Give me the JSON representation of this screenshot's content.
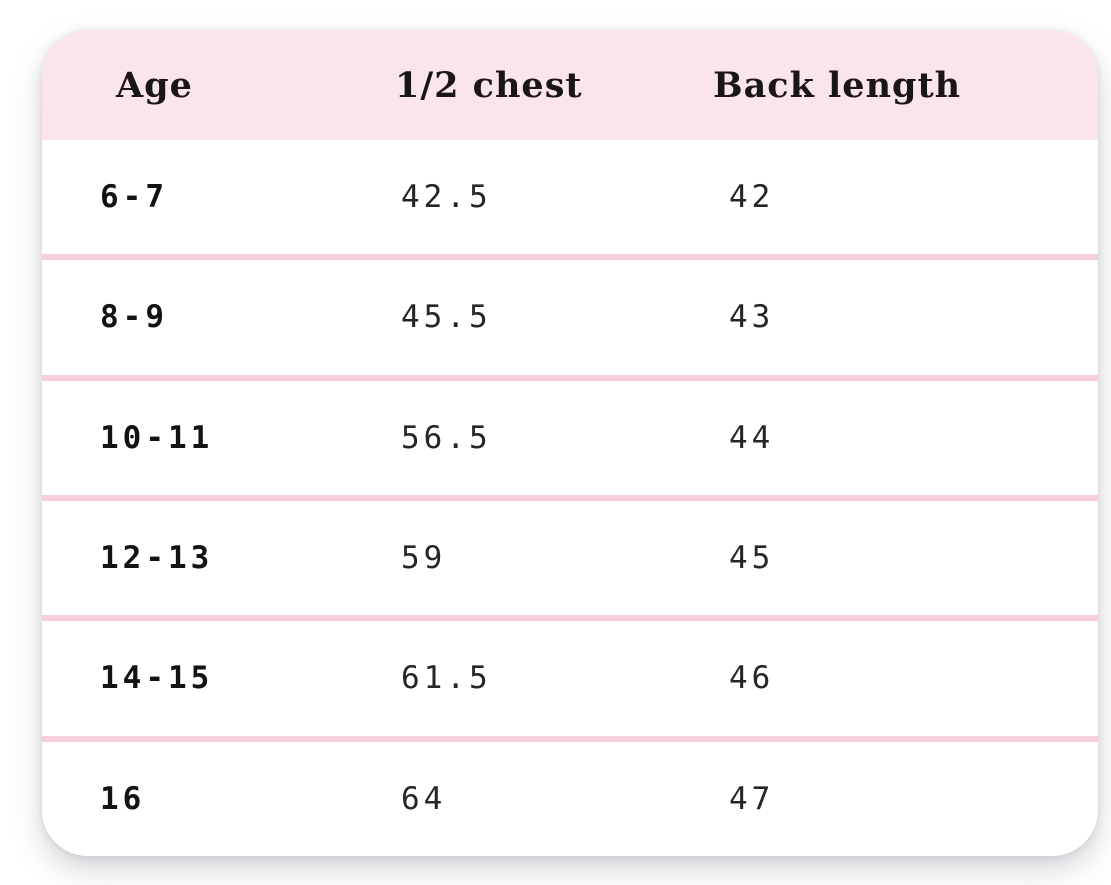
{
  "colors": {
    "page_background": "#ffffff",
    "card_background": "#ffffff",
    "header_background": "#f9e5ea",
    "divider": "#f7cfda",
    "header_text": "#19151a",
    "age_text": "#141213",
    "value_text": "#272526"
  },
  "table": {
    "headers": {
      "age": "Age",
      "half_chest": "1/2 chest",
      "back_length": "Back length"
    },
    "rows": [
      {
        "age": "6-7",
        "half_chest": "42.5",
        "back_length": "42"
      },
      {
        "age": "8-9",
        "half_chest": "45.5",
        "back_length": "43"
      },
      {
        "age": "10-11",
        "half_chest": "56.5",
        "back_length": "44"
      },
      {
        "age": "12-13",
        "half_chest": "59",
        "back_length": "45"
      },
      {
        "age": "14-15",
        "half_chest": "61.5",
        "back_length": "46"
      },
      {
        "age": "16",
        "half_chest": "64",
        "back_length": "47"
      }
    ]
  }
}
